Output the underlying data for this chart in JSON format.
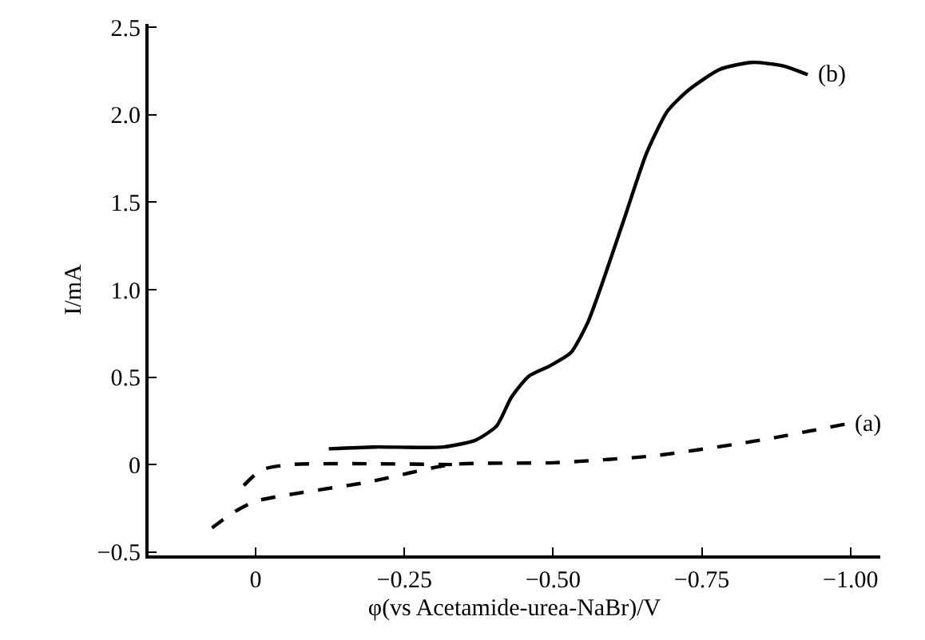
{
  "chart_data": {
    "type": "line",
    "xlabel": "φ(vs Acetamide-urea-NaBr)/V",
    "ylabel": "I/mA",
    "xlim": [
      0.18,
      -1.05
    ],
    "ylim": [
      -0.52,
      2.52
    ],
    "xticks": [
      {
        "value": 0,
        "label": "0"
      },
      {
        "value": -0.25,
        "label": "−0.25"
      },
      {
        "value": -0.5,
        "label": "−0.50"
      },
      {
        "value": -0.75,
        "label": "−0.75"
      },
      {
        "value": -1,
        "label": "−1.00"
      }
    ],
    "yticks": [
      {
        "value": -0.5,
        "label": "−0.5"
      },
      {
        "value": 0,
        "label": "0"
      },
      {
        "value": 0.5,
        "label": "0.5"
      },
      {
        "value": 1,
        "label": "1.0"
      },
      {
        "value": 1.5,
        "label": "1.5"
      },
      {
        "value": 2,
        "label": "2.0"
      },
      {
        "value": 2.5,
        "label": "2.5"
      }
    ],
    "grid": false,
    "marker": "none",
    "series": [
      {
        "name": "(b)",
        "color": "#000000",
        "line_style": "solid",
        "x": [
          -0.928,
          -0.887,
          -0.834,
          -0.78,
          -0.727,
          -0.692,
          -0.657,
          -0.62,
          -0.584,
          -0.558,
          -0.53,
          -0.495,
          -0.459,
          -0.43,
          -0.405,
          -0.37,
          -0.316,
          -0.2,
          -0.123
        ],
        "values": [
          2.23,
          2.28,
          2.3,
          2.26,
          2.14,
          2.02,
          1.78,
          1.41,
          1.05,
          0.81,
          0.64,
          0.565,
          0.505,
          0.385,
          0.22,
          0.14,
          0.1,
          0.1,
          0.09
        ]
      },
      {
        "name": "(a)",
        "color": "#000000",
        "line_style": "dashed",
        "x": [
          -0.99,
          -0.85,
          -0.67,
          -0.5,
          -0.33,
          -0.19,
          0.0,
          0.04,
          0.08,
          null,
          0.02,
          -0.01,
          -0.06,
          -0.33
        ],
        "values": [
          0.23,
          0.14,
          0.05,
          0.01,
          0.0,
          -0.1,
          -0.21,
          -0.28,
          -0.38,
          null,
          -0.12,
          -0.03,
          0.0,
          0.0
        ]
      }
    ]
  }
}
